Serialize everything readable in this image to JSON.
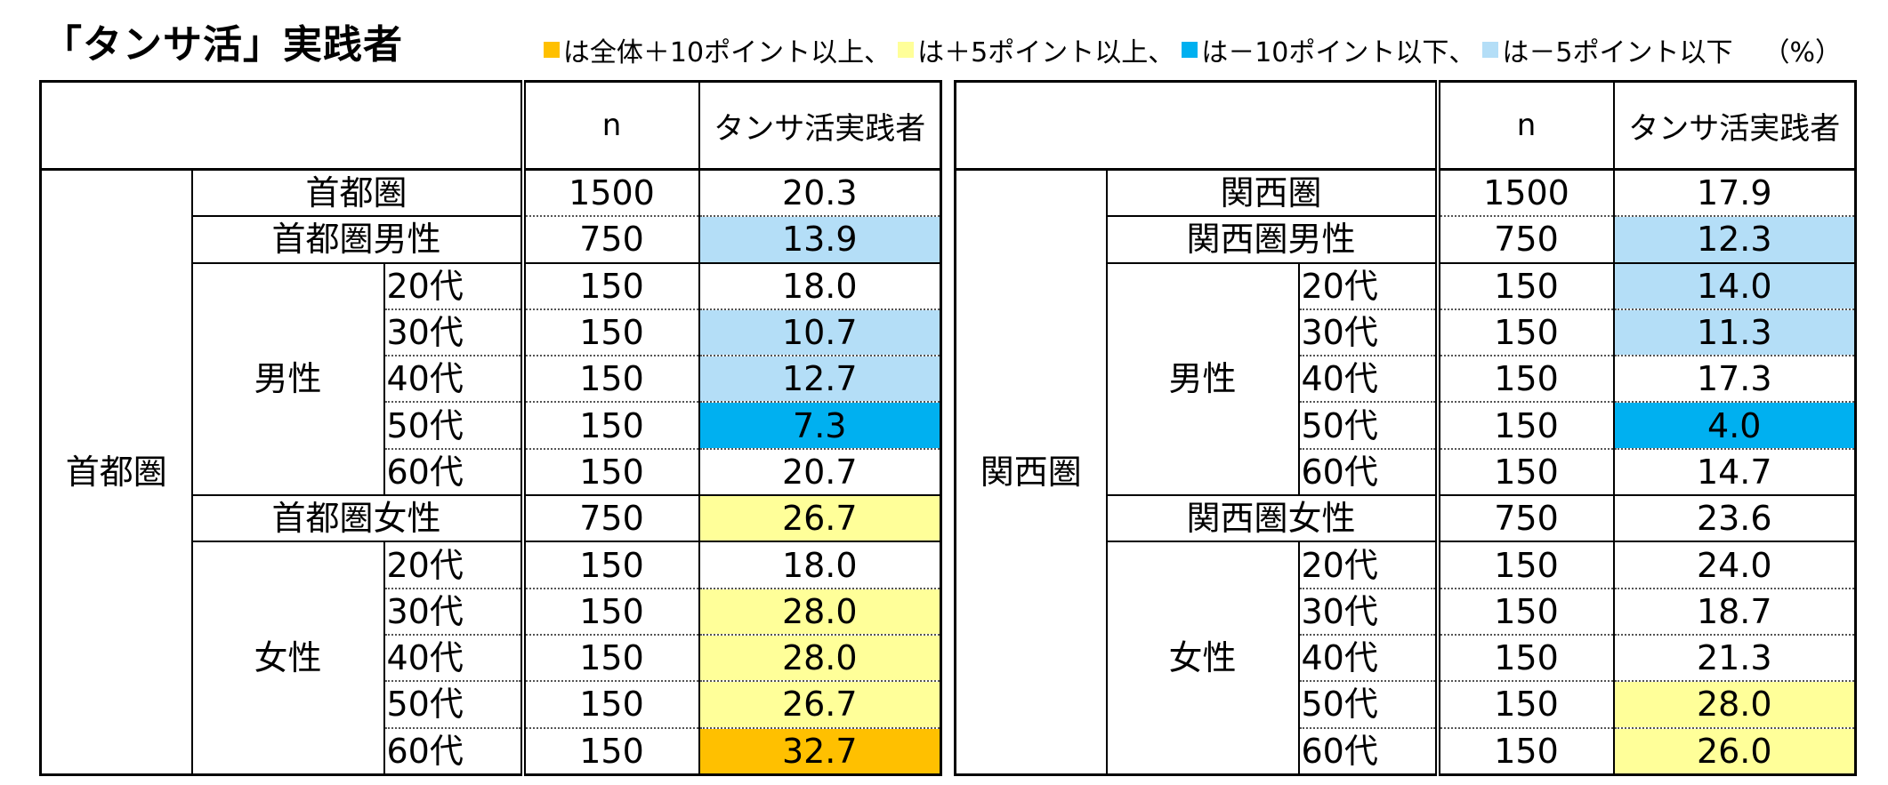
{
  "title": "「タンサ活」実践者",
  "legend": {
    "items": [
      {
        "text": "は全体＋10ポイント以上、",
        "color": "#FFC000"
      },
      {
        "text": "は＋5ポイント以上、",
        "color": "#FFFF99"
      },
      {
        "text": "は－10ポイント以下、",
        "color": "#00B0F0"
      },
      {
        "text": "は－5ポイント以下",
        "color": "#B4DEF7"
      }
    ],
    "unit": "（%）"
  },
  "colors": {
    "plus10": "#FFC000",
    "plus5": "#FFFF99",
    "minus10": "#00B0F0",
    "minus5": "#B4DEF7",
    "none": "#FFFFFF"
  },
  "chart_data": [
    {
      "type": "table",
      "region": "首都圏",
      "columns": [
        "n",
        "タンサ活実践者"
      ],
      "total": {
        "label": "首都圏",
        "n": "1500",
        "value": "20.3",
        "highlight": "none"
      },
      "groups": [
        {
          "label": "男性",
          "total": {
            "label": "首都圏男性",
            "n": "750",
            "value": "13.9",
            "highlight": "minus5"
          },
          "rows": [
            {
              "label": "20代",
              "n": "150",
              "value": "18.0",
              "highlight": "none"
            },
            {
              "label": "30代",
              "n": "150",
              "value": "10.7",
              "highlight": "minus5"
            },
            {
              "label": "40代",
              "n": "150",
              "value": "12.7",
              "highlight": "minus5"
            },
            {
              "label": "50代",
              "n": "150",
              "value": "7.3",
              "highlight": "minus10"
            },
            {
              "label": "60代",
              "n": "150",
              "value": "20.7",
              "highlight": "none"
            }
          ]
        },
        {
          "label": "女性",
          "total": {
            "label": "首都圏女性",
            "n": "750",
            "value": "26.7",
            "highlight": "plus5"
          },
          "rows": [
            {
              "label": "20代",
              "n": "150",
              "value": "18.0",
              "highlight": "none"
            },
            {
              "label": "30代",
              "n": "150",
              "value": "28.0",
              "highlight": "plus5"
            },
            {
              "label": "40代",
              "n": "150",
              "value": "28.0",
              "highlight": "plus5"
            },
            {
              "label": "50代",
              "n": "150",
              "value": "26.7",
              "highlight": "plus5"
            },
            {
              "label": "60代",
              "n": "150",
              "value": "32.7",
              "highlight": "plus10"
            }
          ]
        }
      ]
    },
    {
      "type": "table",
      "region": "関西圏",
      "columns": [
        "n",
        "タンサ活実践者"
      ],
      "total": {
        "label": "関西圏",
        "n": "1500",
        "value": "17.9",
        "highlight": "none"
      },
      "groups": [
        {
          "label": "男性",
          "total": {
            "label": "関西圏男性",
            "n": "750",
            "value": "12.3",
            "highlight": "minus5"
          },
          "rows": [
            {
              "label": "20代",
              "n": "150",
              "value": "14.0",
              "highlight": "minus5"
            },
            {
              "label": "30代",
              "n": "150",
              "value": "11.3",
              "highlight": "minus5"
            },
            {
              "label": "40代",
              "n": "150",
              "value": "17.3",
              "highlight": "none"
            },
            {
              "label": "50代",
              "n": "150",
              "value": "4.0",
              "highlight": "minus10"
            },
            {
              "label": "60代",
              "n": "150",
              "value": "14.7",
              "highlight": "none"
            }
          ]
        },
        {
          "label": "女性",
          "total": {
            "label": "関西圏女性",
            "n": "750",
            "value": "23.6",
            "highlight": "none"
          },
          "rows": [
            {
              "label": "20代",
              "n": "150",
              "value": "24.0",
              "highlight": "none"
            },
            {
              "label": "30代",
              "n": "150",
              "value": "18.7",
              "highlight": "none"
            },
            {
              "label": "40代",
              "n": "150",
              "value": "21.3",
              "highlight": "none"
            },
            {
              "label": "50代",
              "n": "150",
              "value": "28.0",
              "highlight": "plus5"
            },
            {
              "label": "60代",
              "n": "150",
              "value": "26.0",
              "highlight": "plus5"
            }
          ]
        }
      ]
    }
  ]
}
